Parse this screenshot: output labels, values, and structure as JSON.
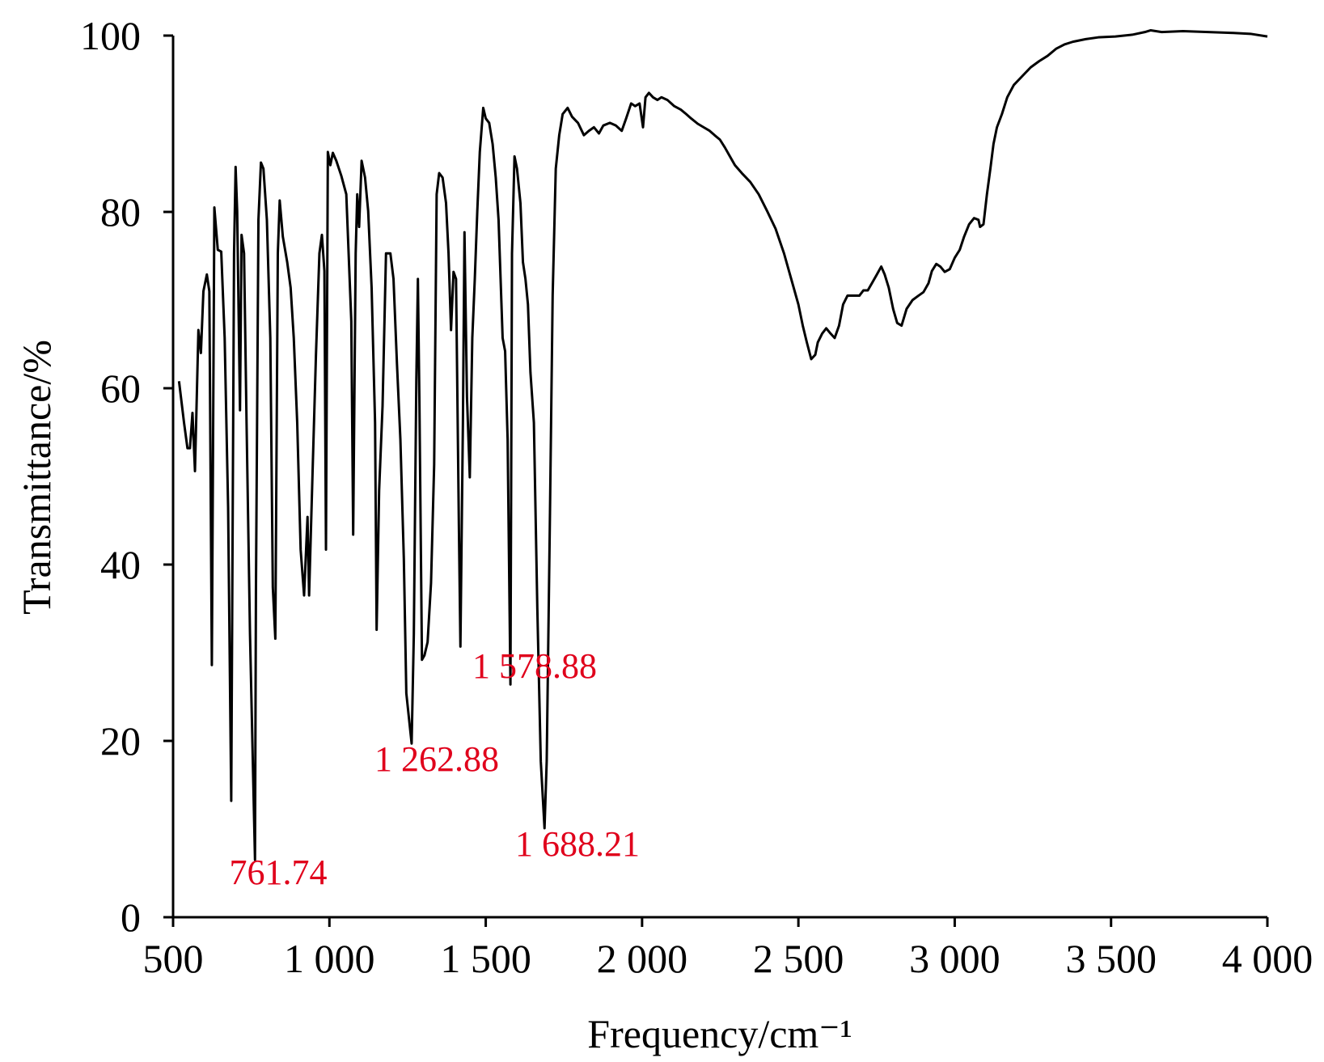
{
  "chart_data": {
    "type": "line",
    "xlabel": "Frequency/cm⁻¹",
    "ylabel": "Transmittance/%",
    "xlim": [
      500,
      4000
    ],
    "ylim": [
      0,
      100
    ],
    "xticks": [
      500,
      {
        "value": 1000,
        "label": "1 000"
      },
      {
        "value": 1500,
        "label": "1 500"
      },
      {
        "value": 2000,
        "label": "2 000"
      },
      {
        "value": 2500,
        "label": "2 500"
      },
      {
        "value": 3000,
        "label": "3 000"
      },
      {
        "value": 3500,
        "label": "3 500"
      },
      {
        "value": 4000,
        "label": "4 000"
      }
    ],
    "yticks": [
      0,
      20,
      40,
      60,
      80,
      100
    ],
    "annotations": [
      "761.74",
      "1 262.88",
      "1 578.88",
      "1 688.21"
    ],
    "color": "#000000",
    "x": [
      519,
      535,
      546,
      554,
      562,
      570,
      581,
      589,
      597,
      608,
      616,
      624,
      632,
      643,
      654,
      665,
      676,
      686,
      695,
      700,
      705,
      714,
      719,
      727,
      735,
      746,
      762,
      765,
      773,
      781,
      789,
      800,
      811,
      819,
      827,
      835,
      841,
      851,
      865,
      876,
      886,
      897,
      908,
      919,
      930,
      935,
      946,
      957,
      968,
      976,
      984,
      989,
      995,
      1003,
      1011,
      1022,
      1038,
      1054,
      1070,
      1076,
      1084,
      1089,
      1095,
      1103,
      1114,
      1124,
      1135,
      1146,
      1151,
      1159,
      1170,
      1181,
      1195,
      1205,
      1216,
      1227,
      1238,
      1246,
      1263,
      1270,
      1278,
      1283,
      1288,
      1296,
      1304,
      1314,
      1325,
      1335,
      1343,
      1351,
      1362,
      1373,
      1381,
      1389,
      1397,
      1405,
      1414,
      1419,
      1427,
      1432,
      1440,
      1449,
      1457,
      1465,
      1473,
      1481,
      1492,
      1500,
      1511,
      1522,
      1532,
      1541,
      1554,
      1562,
      1570,
      1579,
      1584,
      1592,
      1600,
      1611,
      1619,
      1627,
      1635,
      1643,
      1654,
      1665,
      1676,
      1688,
      1695,
      1705,
      1714,
      1724,
      1735,
      1746,
      1762,
      1776,
      1795,
      1814,
      1830,
      1846,
      1862,
      1876,
      1897,
      1916,
      1935,
      1949,
      1965,
      1978,
      1992,
      2003,
      2011,
      2022,
      2035,
      2049,
      2062,
      2081,
      2103,
      2124,
      2141,
      2157,
      2178,
      2197,
      2216,
      2232,
      2249,
      2265,
      2281,
      2297,
      2319,
      2346,
      2373,
      2400,
      2427,
      2454,
      2481,
      2500,
      2514,
      2527,
      2541,
      2554,
      2562,
      2576,
      2589,
      2603,
      2616,
      2630,
      2643,
      2657,
      2676,
      2695,
      2708,
      2722,
      2735,
      2751,
      2765,
      2776,
      2789,
      2803,
      2816,
      2830,
      2846,
      2865,
      2884,
      2900,
      2916,
      2927,
      2941,
      2954,
      2968,
      2984,
      3000,
      3016,
      3030,
      3046,
      3062,
      3076,
      3081,
      3092,
      3103,
      3114,
      3124,
      3135,
      3151,
      3168,
      3189,
      3216,
      3243,
      3270,
      3297,
      3324,
      3351,
      3378,
      3419,
      3459,
      3514,
      3568,
      3608,
      3627,
      3662,
      3730,
      3811,
      3892,
      3946,
      4000
    ],
    "values": [
      60.8,
      56.1,
      53.2,
      53.2,
      57.2,
      50.6,
      66.6,
      64.0,
      71.0,
      72.9,
      71.0,
      28.6,
      80.5,
      75.7,
      75.5,
      65.7,
      46.5,
      13.2,
      75.3,
      85.1,
      80.1,
      57.5,
      77.4,
      75.3,
      56.1,
      32.1,
      6.5,
      36.9,
      79.1,
      85.6,
      84.9,
      79.1,
      65.7,
      37.4,
      31.6,
      75.3,
      81.3,
      77.2,
      74.3,
      71.4,
      65.7,
      56.1,
      41.7,
      36.5,
      45.4,
      36.5,
      50.3,
      63.8,
      75.3,
      77.4,
      73.3,
      41.7,
      86.8,
      85.3,
      86.7,
      85.8,
      84.1,
      82.0,
      67.6,
      43.4,
      75.3,
      82.0,
      78.3,
      85.8,
      83.9,
      80.1,
      71.4,
      56.1,
      32.6,
      48.4,
      58.0,
      75.3,
      75.3,
      72.4,
      62.8,
      54.2,
      40.7,
      25.4,
      19.7,
      32.1,
      60.9,
      72.4,
      58.0,
      29.2,
      29.7,
      31.2,
      37.9,
      51.3,
      82.0,
      84.4,
      83.9,
      81.0,
      75.3,
      66.6,
      73.2,
      72.4,
      44.6,
      30.7,
      56.1,
      77.7,
      59.0,
      49.9,
      65.7,
      72.4,
      80.1,
      86.8,
      91.8,
      90.6,
      90.1,
      87.7,
      83.9,
      79.1,
      65.7,
      64.2,
      54.2,
      26.4,
      75.3,
      86.3,
      84.9,
      81.0,
      74.3,
      72.4,
      69.5,
      61.8,
      56.1,
      35.0,
      17.7,
      10.1,
      17.7,
      44.6,
      70.5,
      84.9,
      88.7,
      91.1,
      91.8,
      90.8,
      90.1,
      88.7,
      89.2,
      89.6,
      88.9,
      89.8,
      90.1,
      89.8,
      89.2,
      90.6,
      92.3,
      92.0,
      92.3,
      89.6,
      93.0,
      93.5,
      93.0,
      92.7,
      93.0,
      92.7,
      92.0,
      91.6,
      91.1,
      90.6,
      90.0,
      89.6,
      89.2,
      88.7,
      88.2,
      87.3,
      86.3,
      85.3,
      84.4,
      83.4,
      82.0,
      80.1,
      78.1,
      75.3,
      71.9,
      69.5,
      67.1,
      65.2,
      63.3,
      63.8,
      65.2,
      66.2,
      66.8,
      66.2,
      65.7,
      67.1,
      69.5,
      70.5,
      70.5,
      70.5,
      71.1,
      71.1,
      71.9,
      72.9,
      73.8,
      72.9,
      71.4,
      69.0,
      67.4,
      67.1,
      69.0,
      70.0,
      70.5,
      70.9,
      71.9,
      73.3,
      74.1,
      73.8,
      73.2,
      73.5,
      74.8,
      75.7,
      77.2,
      78.6,
      79.3,
      79.1,
      78.3,
      78.6,
      82.0,
      84.9,
      87.7,
      89.6,
      91.1,
      93.0,
      94.4,
      95.4,
      96.4,
      97.1,
      97.7,
      98.5,
      99.0,
      99.3,
      99.6,
      99.8,
      99.9,
      100.1,
      100.4,
      100.6,
      100.4,
      100.5,
      100.4,
      100.3,
      100.2,
      99.9
    ]
  }
}
